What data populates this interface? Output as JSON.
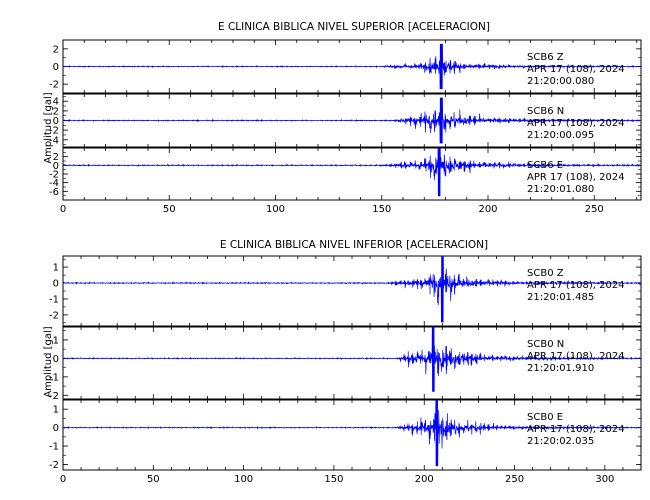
{
  "chart_data": [
    {
      "type": "line",
      "title": "E CLINICA BIBLICA NIVEL SUPERIOR [ACELERACION]",
      "ylabel": "Amplitud [gal]",
      "xlabel": "",
      "xlim": [
        0,
        272
      ],
      "xticks": [
        0,
        50,
        100,
        150,
        200,
        250
      ],
      "grid": false,
      "trace_color": "#0000ff",
      "channels": [
        {
          "station": "SCB6",
          "component": "Z",
          "date": "APR 17 (108), 2024",
          "time": "21:20:00.080",
          "ylim": [
            -3,
            3
          ],
          "yticks": [
            -2,
            0,
            2
          ],
          "noise": 0.1,
          "peak_t": 178,
          "peak_amp": 2.7,
          "env": [
            [
              150,
              0.2
            ],
            [
              168,
              0.9
            ],
            [
              178,
              2.7
            ],
            [
              188,
              0.9
            ],
            [
              220,
              0.25
            ],
            [
              272,
              0.12
            ]
          ]
        },
        {
          "station": "SCB6",
          "component": "N",
          "date": "APR 17 (108), 2024",
          "time": "21:20:00.095",
          "ylim": [
            -5.5,
            5.5
          ],
          "yticks": [
            -4,
            -2,
            0,
            2,
            4
          ],
          "noise": 0.2,
          "peak_t": 178,
          "peak_amp": 5.0,
          "env": [
            [
              155,
              0.4
            ],
            [
              172,
              4.0
            ],
            [
              178,
              5.0
            ],
            [
              186,
              3.5
            ],
            [
              200,
              1.2
            ],
            [
              235,
              0.5
            ],
            [
              272,
              0.3
            ]
          ]
        },
        {
          "station": "SCB6",
          "component": "E",
          "date": "APR 17 (108), 2024",
          "time": "21:20:01.080",
          "ylim": [
            -8,
            4
          ],
          "yticks": [
            -6,
            -4,
            -2,
            0,
            2
          ],
          "noise": 0.25,
          "peak_t": 177,
          "peak_amp": 7.5,
          "env": [
            [
              150,
              0.5
            ],
            [
              170,
              3.0
            ],
            [
              177,
              7.5
            ],
            [
              185,
              3.5
            ],
            [
              200,
              1.5
            ],
            [
              230,
              0.6
            ],
            [
              272,
              0.35
            ]
          ]
        }
      ]
    },
    {
      "type": "line",
      "title": "E CLINICA BIBLICA NIVEL INFERIOR [ACELERACION]",
      "ylabel": "Amplitud [gal]",
      "xlabel": "",
      "xlim": [
        0,
        320
      ],
      "xticks": [
        0,
        50,
        100,
        150,
        200,
        250,
        300
      ],
      "grid": false,
      "trace_color": "#0000ff",
      "channels": [
        {
          "station": "SCB0",
          "component": "Z",
          "date": "APR 17 (108), 2024",
          "time": "21:20:01.485",
          "ylim": [
            -2.7,
            1.7
          ],
          "yticks": [
            -2,
            -1,
            0,
            1
          ],
          "noise": 0.07,
          "peak_t": 210,
          "peak_amp": 2.6,
          "env": [
            [
              180,
              0.2
            ],
            [
              200,
              0.8
            ],
            [
              210,
              2.6
            ],
            [
              222,
              0.9
            ],
            [
              250,
              0.2
            ],
            [
              320,
              0.08
            ]
          ]
        },
        {
          "station": "SCB0",
          "component": "N",
          "date": "APR 17 (108), 2024",
          "time": "21:20:01.910",
          "ylim": [
            -2.2,
            1.7
          ],
          "yticks": [
            -2,
            -1,
            0,
            1
          ],
          "noise": 0.05,
          "peak_t": 205,
          "peak_amp": 1.9,
          "env": [
            [
              185,
              0.2
            ],
            [
              200,
              1.3
            ],
            [
              205,
              1.9
            ],
            [
              215,
              1.2
            ],
            [
              240,
              0.3
            ],
            [
              320,
              0.06
            ]
          ]
        },
        {
          "station": "SCB0",
          "component": "E",
          "date": "APR 17 (108), 2024",
          "time": "21:20:02.035",
          "ylim": [
            -2.3,
            1.5
          ],
          "yticks": [
            -2,
            -1,
            0,
            1
          ],
          "noise": 0.05,
          "peak_t": 207,
          "peak_amp": 2.2,
          "env": [
            [
              185,
              0.2
            ],
            [
              200,
              1.0
            ],
            [
              207,
              2.2
            ],
            [
              218,
              0.9
            ],
            [
              245,
              0.2
            ],
            [
              320,
              0.06
            ]
          ]
        }
      ]
    }
  ]
}
